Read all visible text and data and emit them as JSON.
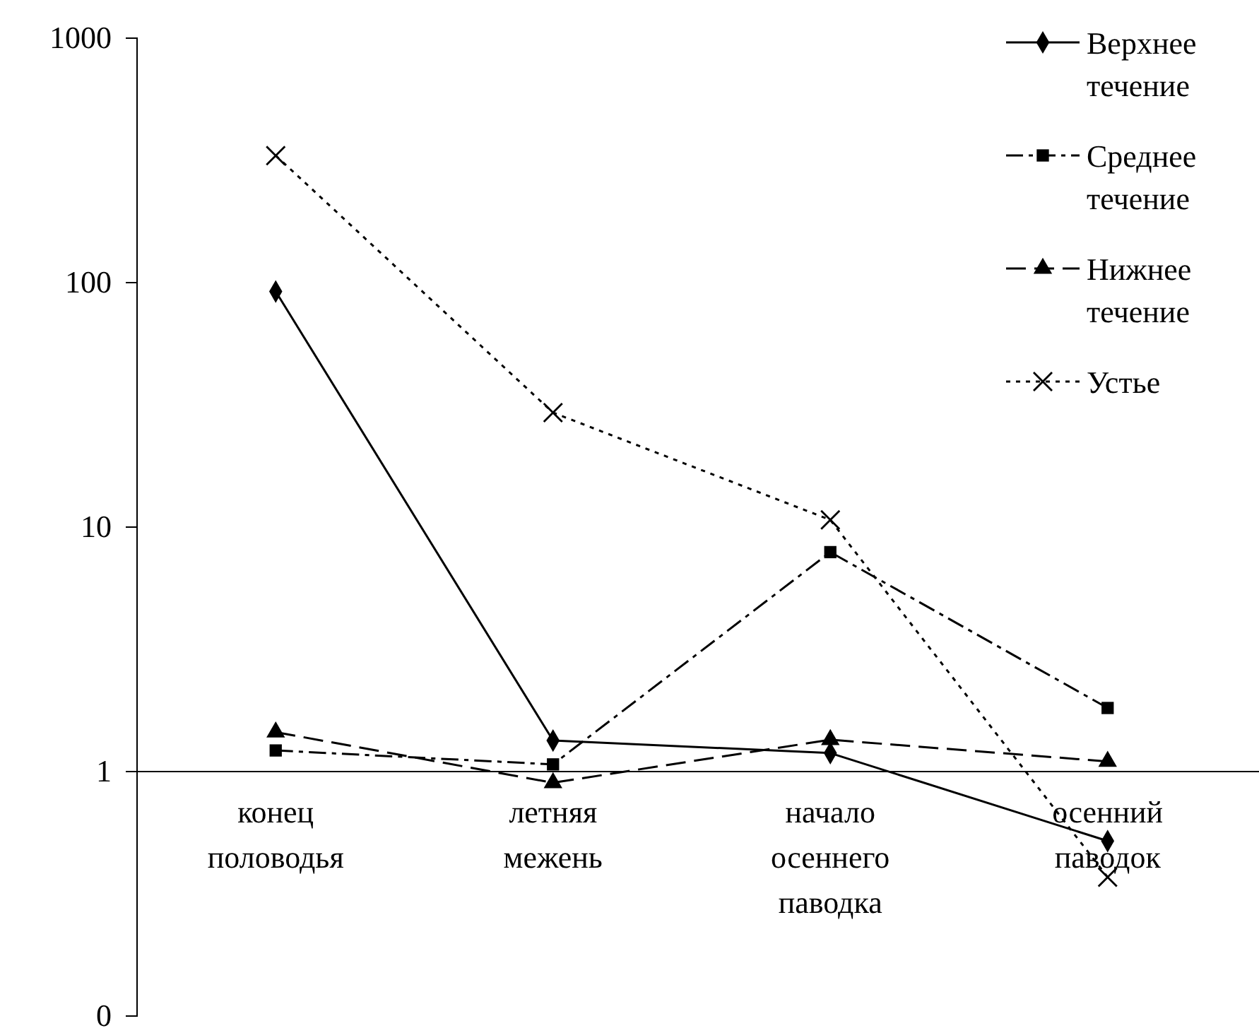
{
  "chart_data": {
    "type": "line",
    "log": "y",
    "categories": [
      "конец половодья",
      "летняя межень",
      "начало осеннего паводка",
      "осенний паводок"
    ],
    "ylim": [
      0.1,
      1000
    ],
    "yticks": [
      {
        "value": 0.1,
        "label": "0"
      },
      1,
      10,
      100,
      1000
    ],
    "grid": false,
    "legend": "top right",
    "series": [
      {
        "name": "Верхнее течение",
        "color": "#000000",
        "marker": "diamond",
        "line_style": "solid",
        "values": [
          92,
          1.34,
          1.19,
          0.52
        ]
      },
      {
        "name": "Среднее течение",
        "color": "#000000",
        "marker": "square",
        "line_style": "dashdot",
        "values": [
          1.22,
          1.07,
          7.9,
          1.82
        ]
      },
      {
        "name": "Нижнее течение",
        "color": "#000000",
        "marker": "triangle",
        "line_style": "dashed",
        "values": [
          1.45,
          0.9,
          1.35,
          1.1
        ]
      },
      {
        "name": "Устье",
        "color": "#000000",
        "marker": "cross",
        "line_style": "dotted",
        "values": [
          331,
          29.4,
          10.7,
          0.37
        ]
      }
    ]
  }
}
